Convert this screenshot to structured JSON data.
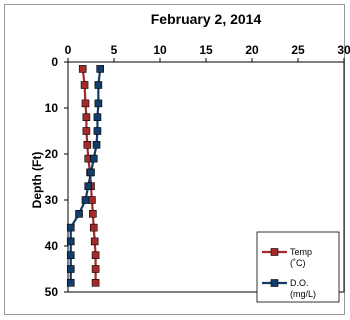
{
  "chart_data": {
    "type": "line",
    "title": "February 2, 2014",
    "xlabel": "",
    "ylabel": "Depth (Ft)",
    "xlim": [
      0,
      30
    ],
    "ylim": [
      0,
      50
    ],
    "y_inverted": true,
    "x_axis_position": "top",
    "x_ticks": [
      "0",
      "5",
      "10",
      "15",
      "20",
      "25",
      "30"
    ],
    "y_ticks": [
      "0",
      "10",
      "20",
      "30",
      "40",
      "50"
    ],
    "grid": false,
    "legend_position": "bottom-right",
    "series": [
      {
        "name": "Temp",
        "unit": "(˚C)",
        "color": "#a52a2a",
        "marker": "square",
        "points": [
          [
            1.6,
            1.5
          ],
          [
            1.8,
            5
          ],
          [
            1.9,
            9
          ],
          [
            2.0,
            12
          ],
          [
            2.0,
            15
          ],
          [
            2.1,
            18
          ],
          [
            2.2,
            21
          ],
          [
            2.4,
            24
          ],
          [
            2.5,
            27
          ],
          [
            2.6,
            30
          ],
          [
            2.7,
            33
          ],
          [
            2.8,
            36
          ],
          [
            2.9,
            39
          ],
          [
            3.0,
            42
          ],
          [
            3.0,
            45
          ],
          [
            3.0,
            48
          ]
        ]
      },
      {
        "name": "D.O.",
        "unit": "(mg/L)",
        "color": "#123c69",
        "marker": "square",
        "points": [
          [
            3.5,
            1.5
          ],
          [
            3.3,
            5
          ],
          [
            3.3,
            9
          ],
          [
            3.2,
            12
          ],
          [
            3.2,
            15
          ],
          [
            3.1,
            18
          ],
          [
            2.8,
            21
          ],
          [
            2.5,
            24
          ],
          [
            2.2,
            27
          ],
          [
            1.9,
            30
          ],
          [
            1.2,
            33
          ],
          [
            0.3,
            36
          ],
          [
            0.3,
            39
          ],
          [
            0.3,
            42
          ],
          [
            0.3,
            45
          ],
          [
            0.3,
            48
          ]
        ]
      }
    ]
  }
}
